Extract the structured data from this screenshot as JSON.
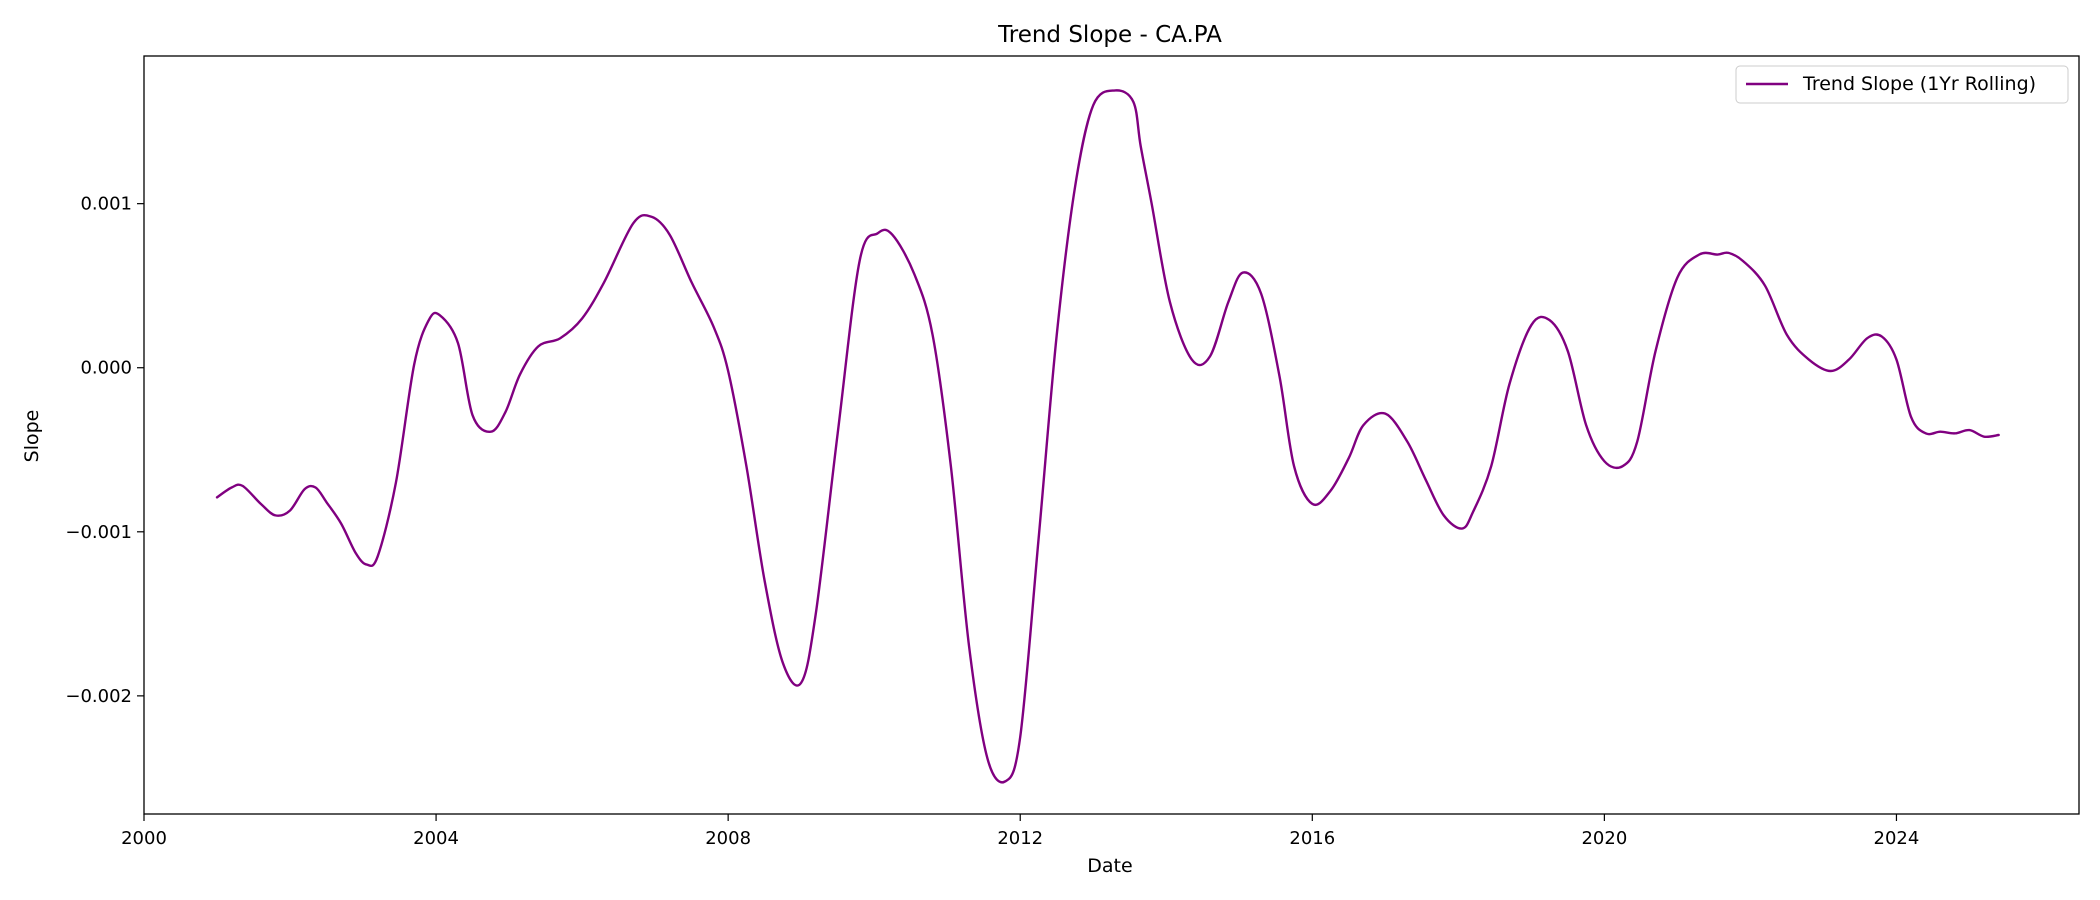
{
  "chart_data": {
    "type": "line",
    "title": "Trend Slope - CA.PA",
    "xlabel": "Date",
    "ylabel": "Slope",
    "xlim": [
      2000.0,
      2026.5
    ],
    "ylim": [
      -0.00272,
      0.0019
    ],
    "x_ticks": [
      {
        "value": 2000,
        "label": "2000"
      },
      {
        "value": 2004,
        "label": "2004"
      },
      {
        "value": 2008,
        "label": "2008"
      },
      {
        "value": 2012,
        "label": "2012"
      },
      {
        "value": 2016,
        "label": "2016"
      },
      {
        "value": 2020,
        "label": "2020"
      },
      {
        "value": 2024,
        "label": "2024"
      }
    ],
    "y_ticks": [
      {
        "value": 0.001,
        "label": "0.001"
      },
      {
        "value": 0.0,
        "label": "0.000"
      },
      {
        "value": -0.001,
        "label": "−0.001"
      },
      {
        "value": -0.002,
        "label": "−0.002"
      }
    ],
    "grid": false,
    "legend_position": "top-right",
    "series": [
      {
        "name": "Trend Slope (1Yr Rolling)",
        "color": "#800080",
        "x": [
          2001.0,
          2001.2,
          2001.35,
          2001.6,
          2001.8,
          2002.0,
          2002.2,
          2002.35,
          2002.5,
          2002.7,
          2002.9,
          2003.05,
          2003.2,
          2003.45,
          2003.7,
          2003.9,
          2004.05,
          2004.3,
          2004.5,
          2004.75,
          2004.95,
          2005.15,
          2005.4,
          2005.7,
          2006.0,
          2006.3,
          2006.7,
          2006.95,
          2007.2,
          2007.5,
          2007.8,
          2008.0,
          2008.25,
          2008.5,
          2008.75,
          2009.0,
          2009.2,
          2009.5,
          2009.8,
          2010.05,
          2010.25,
          2010.55,
          2010.8,
          2011.05,
          2011.3,
          2011.55,
          2011.8,
          2012.0,
          2012.25,
          2012.5,
          2012.75,
          2013.0,
          2013.3,
          2013.55,
          2013.65,
          2013.8,
          2014.05,
          2014.35,
          2014.6,
          2014.85,
          2015.05,
          2015.3,
          2015.55,
          2015.75,
          2016.0,
          2016.25,
          2016.5,
          2016.7,
          2017.0,
          2017.3,
          2017.55,
          2017.8,
          2018.05,
          2018.2,
          2018.45,
          2018.7,
          2019.0,
          2019.25,
          2019.5,
          2019.75,
          2020.0,
          2020.25,
          2020.45,
          2020.7,
          2021.0,
          2021.3,
          2021.55,
          2021.7,
          2021.9,
          2022.2,
          2022.5,
          2022.8,
          2023.1,
          2023.35,
          2023.6,
          2023.8,
          2024.0,
          2024.2,
          2024.4,
          2024.6,
          2024.8,
          2025.0,
          2025.2,
          2025.4
        ],
        "y": [
          -0.00079,
          -0.00073,
          -0.00072,
          -0.00083,
          -0.0009,
          -0.00087,
          -0.00074,
          -0.00073,
          -0.00082,
          -0.00095,
          -0.00113,
          -0.0012,
          -0.00115,
          -0.0007,
          2e-05,
          0.00029,
          0.00032,
          0.00015,
          -0.00029,
          -0.00039,
          -0.00027,
          -4e-05,
          0.00013,
          0.00018,
          0.0003,
          0.00052,
          0.00088,
          0.00092,
          0.00081,
          0.00052,
          0.00025,
          -2e-05,
          -0.0006,
          -0.0013,
          -0.0018,
          -0.00192,
          -0.0015,
          -0.0004,
          0.00065,
          0.00082,
          0.00081,
          0.00057,
          0.0002,
          -0.0006,
          -0.0017,
          -0.00238,
          -0.00252,
          -0.00225,
          -0.00105,
          0.0002,
          0.0011,
          0.0016,
          0.00169,
          0.00162,
          0.00135,
          0.001,
          0.0004,
          5e-05,
          7e-05,
          0.0004,
          0.00058,
          0.00045,
          -5e-05,
          -0.0006,
          -0.00083,
          -0.00075,
          -0.00055,
          -0.00035,
          -0.00028,
          -0.00045,
          -0.00068,
          -0.0009,
          -0.00098,
          -0.00088,
          -0.0006,
          -0.0001,
          0.00026,
          0.00029,
          0.0001,
          -0.00035,
          -0.00057,
          -0.0006,
          -0.00045,
          0.0001,
          0.00055,
          0.00069,
          0.00069,
          0.0007,
          0.00065,
          0.0005,
          0.0002,
          5e-05,
          -2e-05,
          5e-05,
          0.00018,
          0.00019,
          5e-05,
          -0.0003,
          -0.0004,
          -0.00039,
          -0.0004,
          -0.00038,
          -0.00042,
          -0.00041
        ]
      }
    ]
  }
}
